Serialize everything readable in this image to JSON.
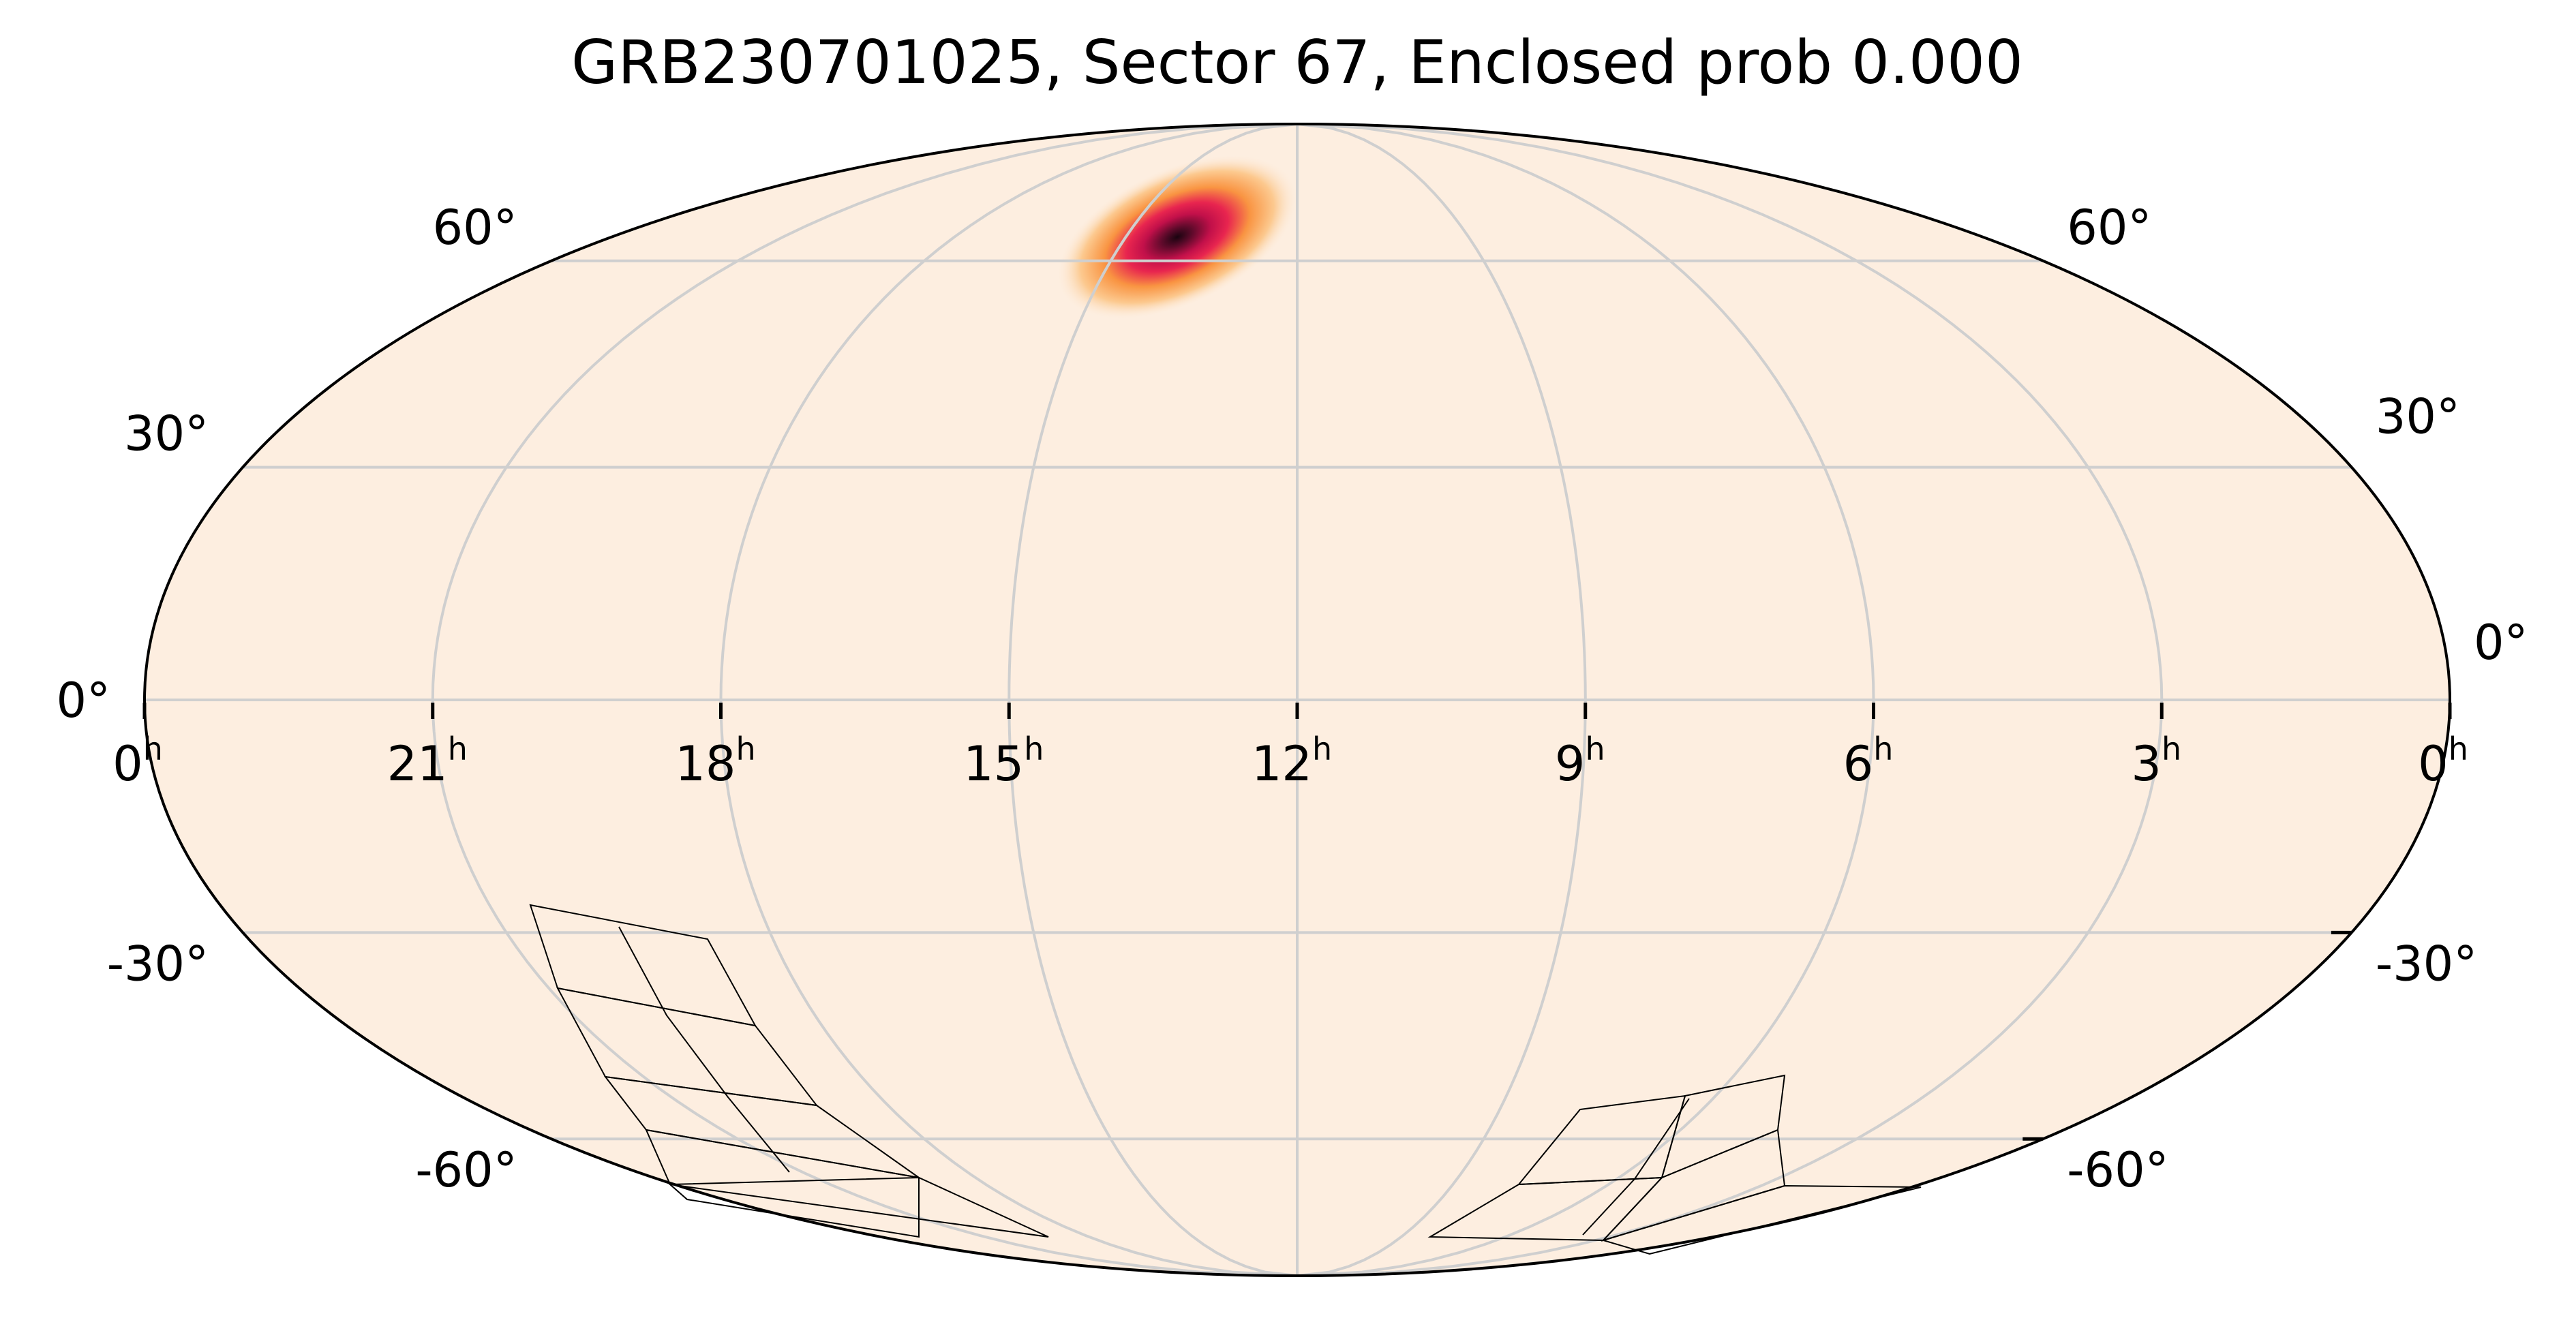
{
  "chart_data": {
    "type": "heatmap",
    "projection": "mollweide",
    "title": "GRB230701025, Sector 67, Enclosed prob 0.000",
    "ra_ticks": [
      {
        "ra_hours": 0,
        "label": "0",
        "sup": "h",
        "side": "left"
      },
      {
        "ra_hours": 21,
        "label": "21",
        "sup": "h"
      },
      {
        "ra_hours": 18,
        "label": "18",
        "sup": "h"
      },
      {
        "ra_hours": 15,
        "label": "15",
        "sup": "h"
      },
      {
        "ra_hours": 12,
        "label": "12",
        "sup": "h"
      },
      {
        "ra_hours": 9,
        "label": "9",
        "sup": "h"
      },
      {
        "ra_hours": 6,
        "label": "6",
        "sup": "h"
      },
      {
        "ra_hours": 3,
        "label": "3",
        "sup": "h"
      },
      {
        "ra_hours": 0,
        "label": "0",
        "sup": "h",
        "side": "right"
      }
    ],
    "dec_ticks": [
      {
        "dec": 60,
        "label": "60°"
      },
      {
        "dec": 30,
        "label": "30°"
      },
      {
        "dec": 0,
        "label": "0°"
      },
      {
        "dec": -30,
        "label": "-30°"
      },
      {
        "dec": -60,
        "label": "-60°"
      }
    ],
    "grid": true,
    "grid_dec_deg": [
      -60,
      -30,
      0,
      30,
      60
    ],
    "grid_ra_hours": [
      0,
      3,
      6,
      9,
      12,
      15,
      18,
      21
    ],
    "background_color": "#fdeee0",
    "colormap": [
      "#fdeee0",
      "#fcc98f",
      "#f99442",
      "#e8254f",
      "#c2104a",
      "#5c0a2a",
      "#1a0410"
    ],
    "probability_peak": {
      "ra_hours": 14.1,
      "dec": 64
    },
    "enclosed_prob": 0.0,
    "sector": 67
  }
}
